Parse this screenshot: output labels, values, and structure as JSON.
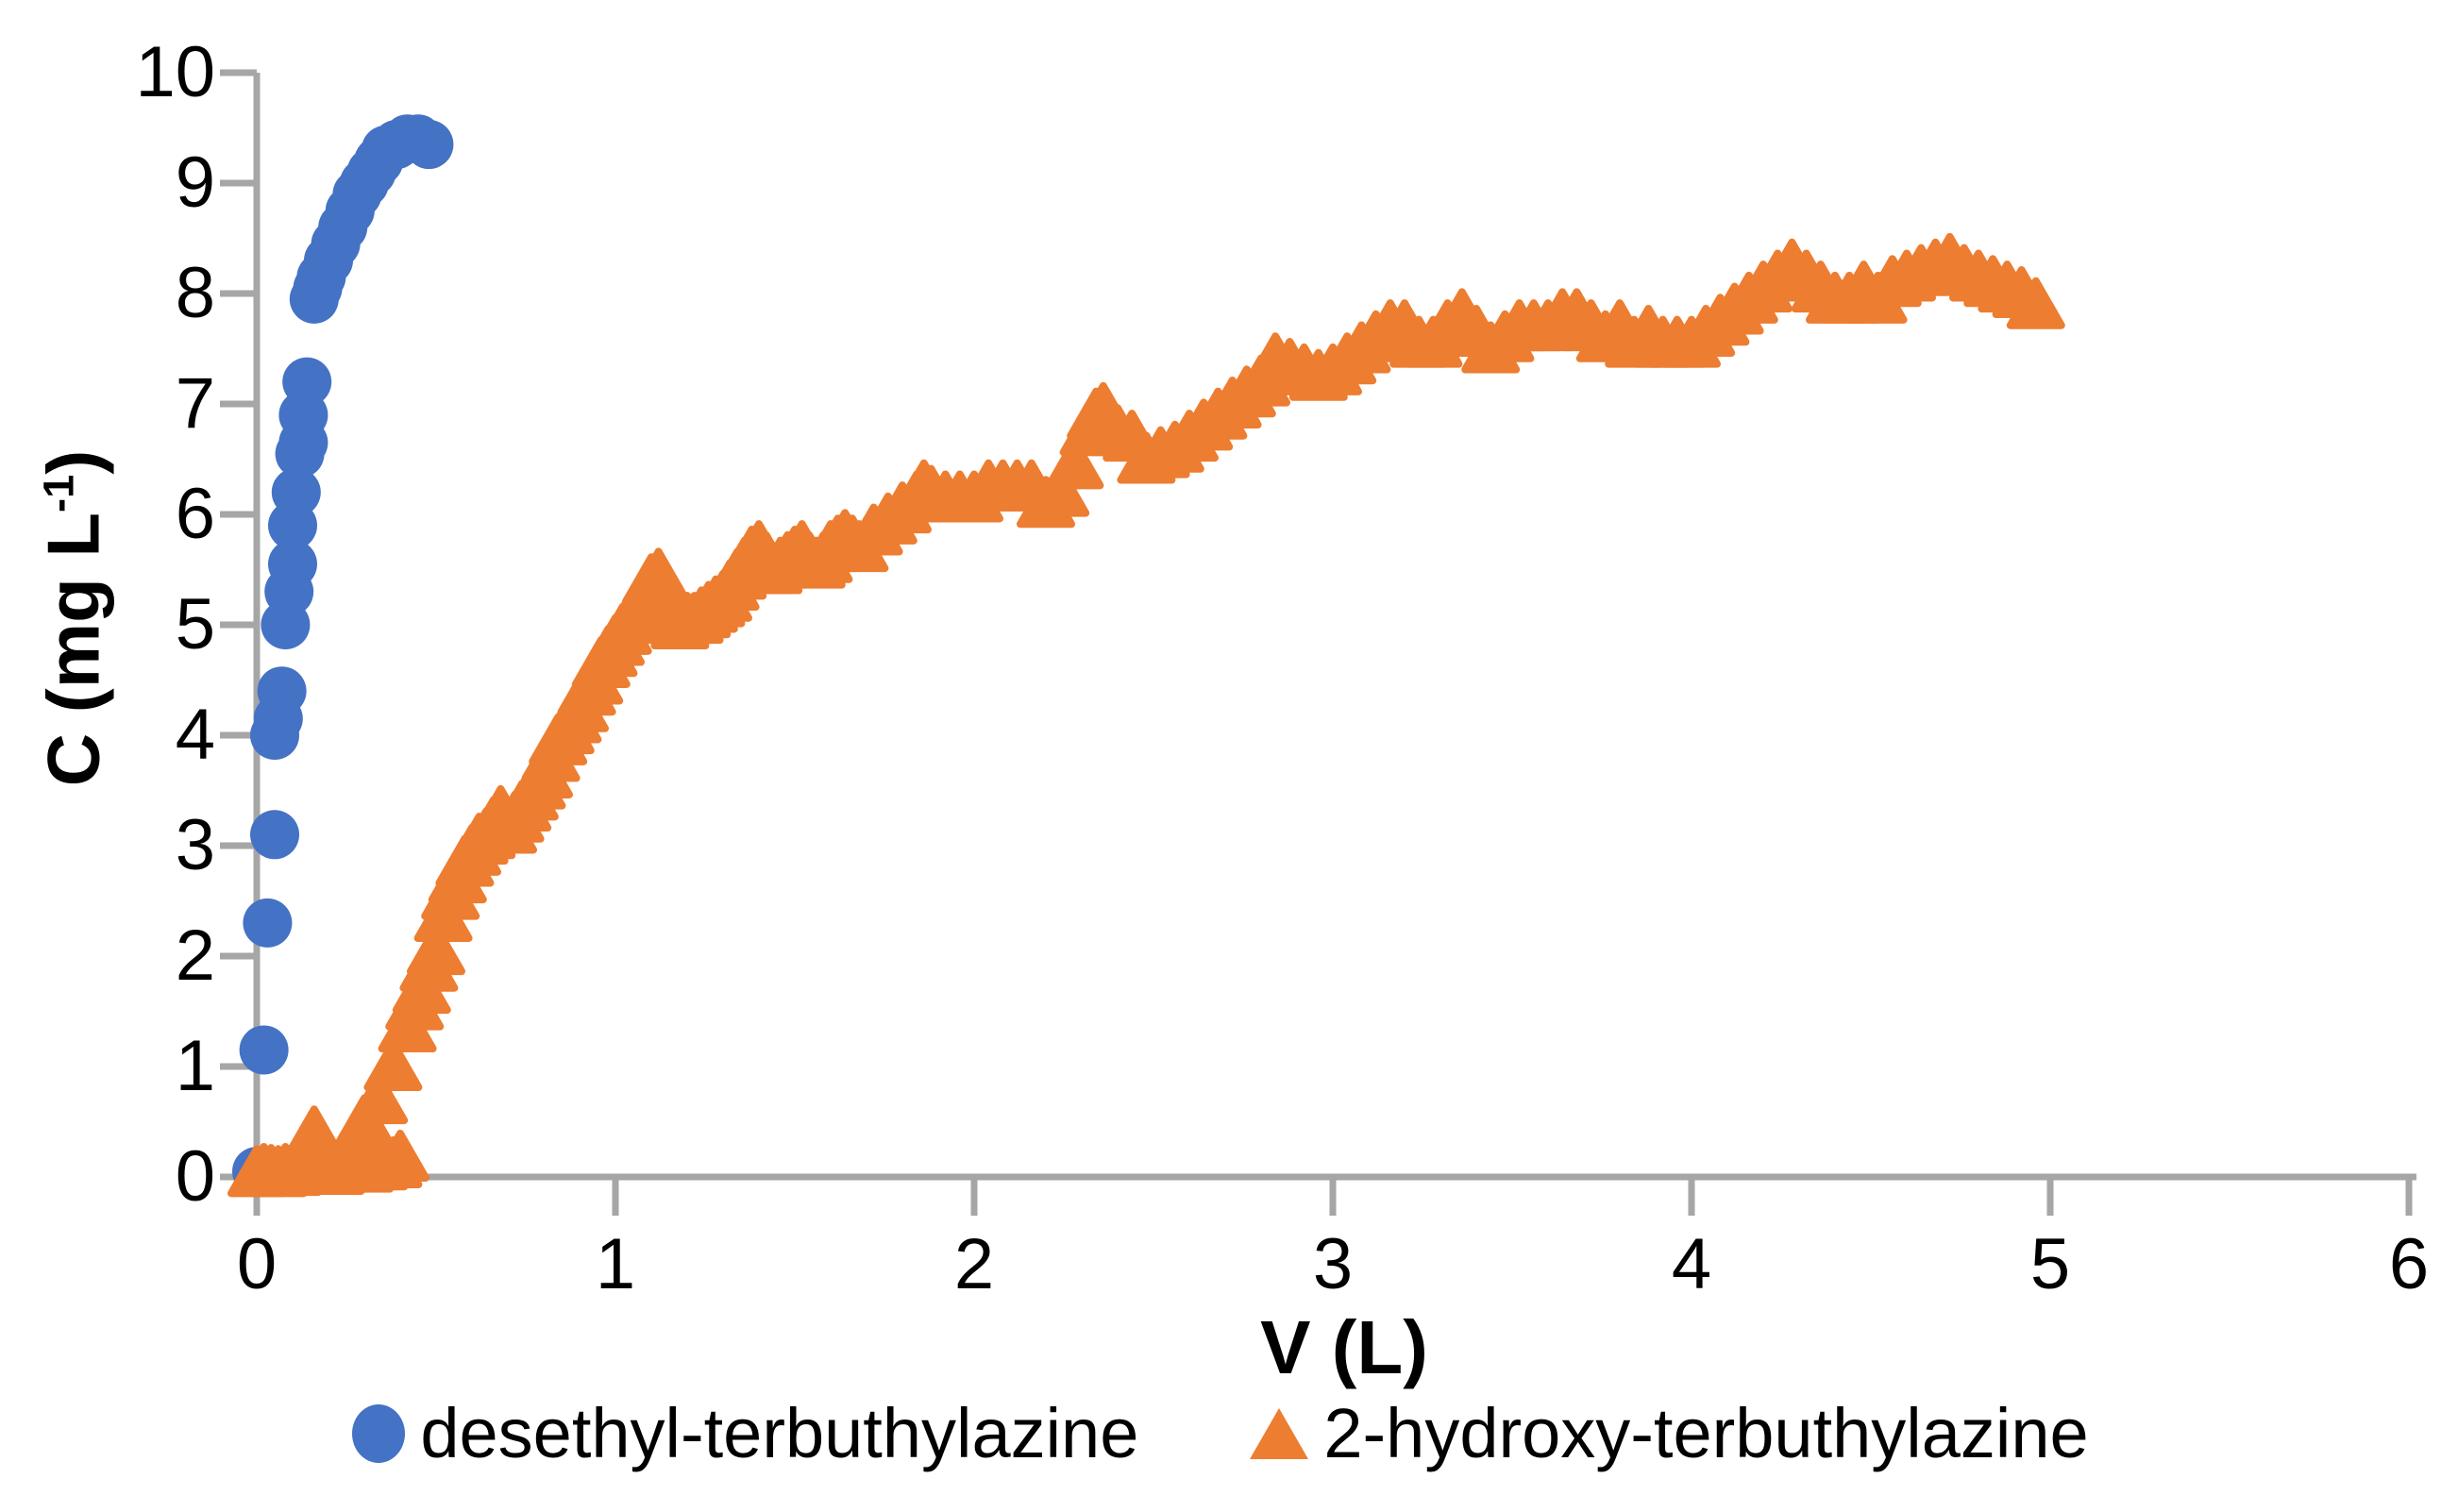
{
  "chart_data": {
    "type": "scatter",
    "title": "",
    "xlabel": "V (L)",
    "ylabel": "C (mg L-1)",
    "ylabel_parts": {
      "prefix": "C (mg L",
      "superscript": "-1",
      "suffix": ")"
    },
    "xlim": [
      0,
      6
    ],
    "ylim": [
      0,
      10
    ],
    "x_ticks": [
      0,
      1,
      2,
      3,
      4,
      5,
      6
    ],
    "y_ticks": [
      0,
      1,
      2,
      3,
      4,
      5,
      6,
      7,
      8,
      9,
      10
    ],
    "grid": false,
    "legend_position": "bottom-center",
    "axis_color": "#A6A6A6",
    "text_color": "#000000",
    "series": [
      {
        "name": "desethyl-terbuthylazine",
        "marker": "circle",
        "color": "#4472C4",
        "points": [
          [
            0.0,
            0.05
          ],
          [
            0.02,
            1.15
          ],
          [
            0.03,
            2.3
          ],
          [
            0.05,
            3.1
          ],
          [
            0.05,
            4.0
          ],
          [
            0.06,
            4.15
          ],
          [
            0.07,
            4.4
          ],
          [
            0.08,
            5.0
          ],
          [
            0.09,
            5.3
          ],
          [
            0.1,
            5.55
          ],
          [
            0.1,
            5.9
          ],
          [
            0.11,
            6.2
          ],
          [
            0.12,
            6.55
          ],
          [
            0.13,
            6.65
          ],
          [
            0.13,
            6.9
          ],
          [
            0.14,
            7.2
          ],
          [
            0.16,
            7.95
          ],
          [
            0.17,
            8.05
          ],
          [
            0.18,
            8.15
          ],
          [
            0.2,
            8.3
          ],
          [
            0.22,
            8.45
          ],
          [
            0.24,
            8.6
          ],
          [
            0.26,
            8.75
          ],
          [
            0.28,
            8.9
          ],
          [
            0.3,
            9.0
          ],
          [
            0.32,
            9.1
          ],
          [
            0.34,
            9.2
          ],
          [
            0.36,
            9.3
          ],
          [
            0.39,
            9.35
          ],
          [
            0.42,
            9.4
          ],
          [
            0.45,
            9.4
          ],
          [
            0.48,
            9.35
          ]
        ]
      },
      {
        "name": "2-hydroxy-terbuthylazine",
        "marker": "triangle",
        "color": "#ED7D31",
        "points": [
          [
            0.0,
            0.04
          ],
          [
            0.02,
            0.06
          ],
          [
            0.04,
            0.05
          ],
          [
            0.06,
            0.04
          ],
          [
            0.08,
            0.06
          ],
          [
            0.1,
            0.05
          ],
          [
            0.12,
            0.07
          ],
          [
            0.14,
            0.1
          ],
          [
            0.16,
            0.4
          ],
          [
            0.18,
            0.2
          ],
          [
            0.2,
            0.08
          ],
          [
            0.22,
            0.06
          ],
          [
            0.24,
            0.1
          ],
          [
            0.26,
            0.12
          ],
          [
            0.28,
            0.3
          ],
          [
            0.3,
            0.08
          ],
          [
            0.3,
            0.5
          ],
          [
            0.34,
            0.1
          ],
          [
            0.34,
            0.7
          ],
          [
            0.38,
            0.12
          ],
          [
            0.38,
            1.0
          ],
          [
            0.4,
            0.18
          ],
          [
            0.42,
            1.35
          ],
          [
            0.44,
            1.55
          ],
          [
            0.46,
            1.7
          ],
          [
            0.48,
            1.9
          ],
          [
            0.5,
            2.05
          ],
          [
            0.52,
            2.35
          ],
          [
            0.54,
            2.55
          ],
          [
            0.56,
            2.7
          ],
          [
            0.58,
            2.85
          ],
          [
            0.6,
            2.95
          ],
          [
            0.62,
            3.05
          ],
          [
            0.64,
            3.1
          ],
          [
            0.66,
            3.2
          ],
          [
            0.68,
            3.3
          ],
          [
            0.7,
            3.15
          ],
          [
            0.72,
            3.25
          ],
          [
            0.74,
            3.35
          ],
          [
            0.76,
            3.45
          ],
          [
            0.78,
            3.55
          ],
          [
            0.8,
            3.65
          ],
          [
            0.82,
            3.8
          ],
          [
            0.84,
            3.95
          ],
          [
            0.86,
            4.05
          ],
          [
            0.88,
            4.15
          ],
          [
            0.9,
            4.25
          ],
          [
            0.92,
            4.4
          ],
          [
            0.94,
            4.5
          ],
          [
            0.96,
            4.65
          ],
          [
            0.98,
            4.75
          ],
          [
            1.0,
            4.85
          ],
          [
            1.02,
            4.95
          ],
          [
            1.04,
            5.05
          ],
          [
            1.06,
            5.15
          ],
          [
            1.08,
            5.25
          ],
          [
            1.1,
            5.4
          ],
          [
            1.12,
            5.45
          ],
          [
            1.14,
            5.2
          ],
          [
            1.16,
            5.05
          ],
          [
            1.18,
            5.0
          ],
          [
            1.2,
            5.05
          ],
          [
            1.22,
            5.05
          ],
          [
            1.24,
            5.1
          ],
          [
            1.26,
            5.15
          ],
          [
            1.28,
            5.2
          ],
          [
            1.3,
            5.25
          ],
          [
            1.32,
            5.35
          ],
          [
            1.34,
            5.45
          ],
          [
            1.36,
            5.55
          ],
          [
            1.38,
            5.65
          ],
          [
            1.4,
            5.7
          ],
          [
            1.42,
            5.6
          ],
          [
            1.44,
            5.5
          ],
          [
            1.46,
            5.55
          ],
          [
            1.48,
            5.6
          ],
          [
            1.5,
            5.65
          ],
          [
            1.52,
            5.7
          ],
          [
            1.54,
            5.6
          ],
          [
            1.56,
            5.55
          ],
          [
            1.58,
            5.6
          ],
          [
            1.6,
            5.7
          ],
          [
            1.62,
            5.75
          ],
          [
            1.64,
            5.8
          ],
          [
            1.66,
            5.75
          ],
          [
            1.68,
            5.7
          ],
          [
            1.72,
            5.85
          ],
          [
            1.76,
            5.95
          ],
          [
            1.8,
            6.05
          ],
          [
            1.84,
            6.15
          ],
          [
            1.86,
            6.25
          ],
          [
            1.88,
            6.2
          ],
          [
            1.92,
            6.15
          ],
          [
            1.96,
            6.15
          ],
          [
            2.0,
            6.15
          ],
          [
            2.04,
            6.25
          ],
          [
            2.08,
            6.25
          ],
          [
            2.12,
            6.25
          ],
          [
            2.16,
            6.25
          ],
          [
            2.2,
            6.1
          ],
          [
            2.24,
            6.2
          ],
          [
            2.28,
            6.45
          ],
          [
            2.32,
            6.75
          ],
          [
            2.34,
            6.9
          ],
          [
            2.36,
            6.95
          ],
          [
            2.4,
            6.75
          ],
          [
            2.44,
            6.7
          ],
          [
            2.48,
            6.5
          ],
          [
            2.52,
            6.55
          ],
          [
            2.56,
            6.6
          ],
          [
            2.6,
            6.7
          ],
          [
            2.64,
            6.8
          ],
          [
            2.68,
            6.9
          ],
          [
            2.72,
            7.0
          ],
          [
            2.76,
            7.1
          ],
          [
            2.8,
            7.2
          ],
          [
            2.84,
            7.4
          ],
          [
            2.88,
            7.35
          ],
          [
            2.92,
            7.3
          ],
          [
            2.96,
            7.25
          ],
          [
            3.0,
            7.3
          ],
          [
            3.04,
            7.4
          ],
          [
            3.08,
            7.5
          ],
          [
            3.12,
            7.6
          ],
          [
            3.16,
            7.7
          ],
          [
            3.2,
            7.7
          ],
          [
            3.24,
            7.55
          ],
          [
            3.28,
            7.55
          ],
          [
            3.32,
            7.7
          ],
          [
            3.36,
            7.8
          ],
          [
            3.4,
            7.65
          ],
          [
            3.44,
            7.5
          ],
          [
            3.48,
            7.6
          ],
          [
            3.52,
            7.7
          ],
          [
            3.56,
            7.7
          ],
          [
            3.6,
            7.7
          ],
          [
            3.64,
            7.8
          ],
          [
            3.68,
            7.8
          ],
          [
            3.72,
            7.7
          ],
          [
            3.76,
            7.6
          ],
          [
            3.8,
            7.7
          ],
          [
            3.84,
            7.55
          ],
          [
            3.88,
            7.65
          ],
          [
            3.92,
            7.55
          ],
          [
            3.96,
            7.55
          ],
          [
            4.0,
            7.55
          ],
          [
            4.04,
            7.65
          ],
          [
            4.08,
            7.75
          ],
          [
            4.12,
            7.85
          ],
          [
            4.16,
            7.95
          ],
          [
            4.2,
            8.05
          ],
          [
            4.24,
            8.15
          ],
          [
            4.28,
            8.25
          ],
          [
            4.32,
            8.15
          ],
          [
            4.36,
            8.05
          ],
          [
            4.4,
            7.95
          ],
          [
            4.44,
            7.95
          ],
          [
            4.48,
            8.05
          ],
          [
            4.52,
            7.95
          ],
          [
            4.56,
            8.1
          ],
          [
            4.6,
            8.15
          ],
          [
            4.64,
            8.2
          ],
          [
            4.68,
            8.25
          ],
          [
            4.72,
            8.3
          ],
          [
            4.76,
            8.2
          ],
          [
            4.8,
            8.15
          ],
          [
            4.84,
            8.1
          ],
          [
            4.88,
            8.05
          ],
          [
            4.92,
            8.0
          ],
          [
            4.96,
            7.9
          ]
        ]
      }
    ]
  },
  "legend": {
    "items": [
      {
        "label": "desethyl-terbuthylazine",
        "color": "#4472C4",
        "marker": "circle"
      },
      {
        "label": "2-hydroxy-terbuthylazine",
        "color": "#ED7D31",
        "marker": "triangle"
      }
    ]
  }
}
